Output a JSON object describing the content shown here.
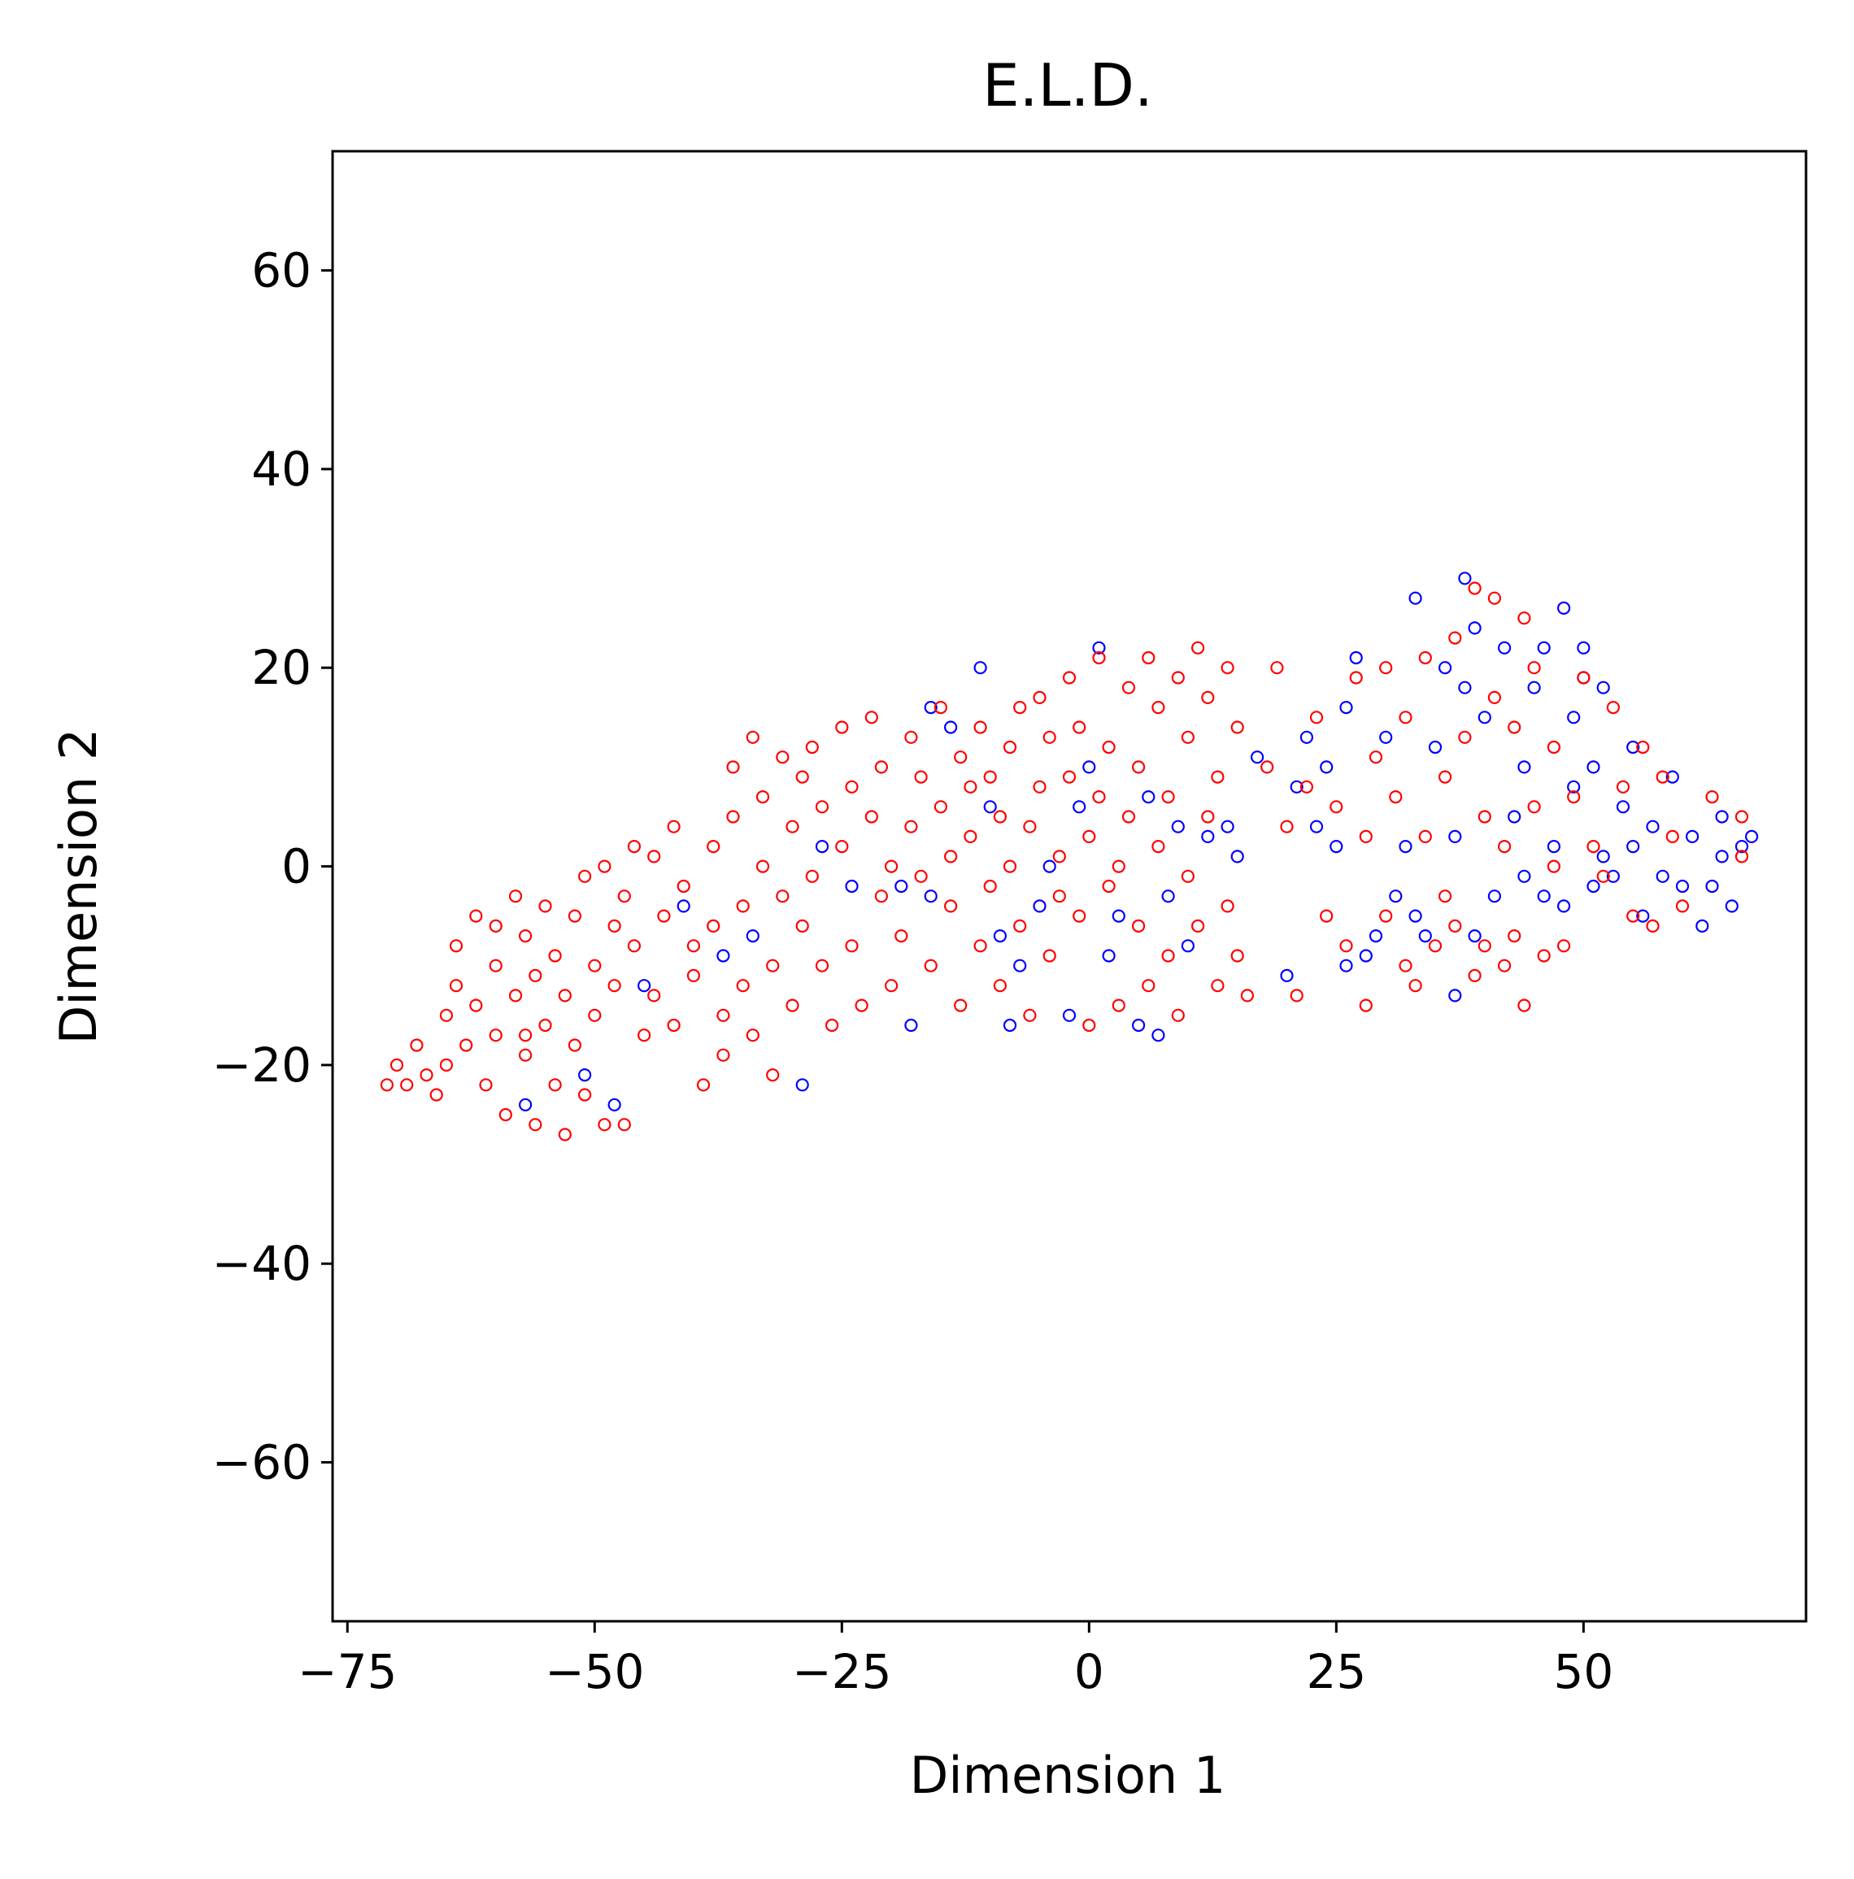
{
  "chart_data": {
    "type": "scatter",
    "title": "E.L.D.",
    "xlabel": "Dimension 1",
    "ylabel": "Dimension 2",
    "xlim": [
      -76.5,
      72.5
    ],
    "ylim": [
      -76,
      72
    ],
    "xticks": [
      -75,
      -50,
      -25,
      0,
      25,
      50
    ],
    "xtick_labels": [
      "−75",
      "−50",
      "−25",
      "0",
      "25",
      "50"
    ],
    "yticks": [
      -60,
      -40,
      -20,
      0,
      20,
      40,
      60
    ],
    "ytick_labels": [
      "−60",
      "−40",
      "−20",
      "0",
      "20",
      "40",
      "60"
    ],
    "grid": false,
    "legend": "none",
    "marker": "hollow-circle",
    "series": [
      {
        "color": "#0000ff",
        "points": [
          [
            -57,
            -24
          ],
          [
            -51,
            -21
          ],
          [
            -48,
            -24
          ],
          [
            -45,
            -12
          ],
          [
            -41,
            -4
          ],
          [
            -37,
            -9
          ],
          [
            -34,
            -7
          ],
          [
            -29,
            -22
          ],
          [
            -27,
            2
          ],
          [
            -24,
            -2
          ],
          [
            -19,
            -2
          ],
          [
            -18,
            -16
          ],
          [
            -16,
            -3
          ],
          [
            -16,
            16
          ],
          [
            -14,
            14
          ],
          [
            -11,
            20
          ],
          [
            -10,
            6
          ],
          [
            -9,
            -7
          ],
          [
            -8,
            -16
          ],
          [
            -7,
            -10
          ],
          [
            -5,
            -4
          ],
          [
            -4,
            0
          ],
          [
            -2,
            -15
          ],
          [
            -1,
            6
          ],
          [
            0,
            10
          ],
          [
            1,
            22
          ],
          [
            2,
            -9
          ],
          [
            3,
            -5
          ],
          [
            5,
            -16
          ],
          [
            6,
            7
          ],
          [
            7,
            -17
          ],
          [
            8,
            -3
          ],
          [
            9,
            4
          ],
          [
            10,
            -8
          ],
          [
            12,
            3
          ],
          [
            14,
            4
          ],
          [
            15,
            1
          ],
          [
            17,
            11
          ],
          [
            20,
            -11
          ],
          [
            21,
            8
          ],
          [
            22,
            13
          ],
          [
            23,
            4
          ],
          [
            24,
            10
          ],
          [
            25,
            2
          ],
          [
            26,
            -10
          ],
          [
            26,
            16
          ],
          [
            27,
            21
          ],
          [
            28,
            -9
          ],
          [
            29,
            -7
          ],
          [
            30,
            13
          ],
          [
            31,
            -3
          ],
          [
            32,
            2
          ],
          [
            33,
            -5
          ],
          [
            33,
            27
          ],
          [
            34,
            -7
          ],
          [
            35,
            12
          ],
          [
            36,
            20
          ],
          [
            37,
            3
          ],
          [
            37,
            -13
          ],
          [
            38,
            29
          ],
          [
            38,
            18
          ],
          [
            39,
            24
          ],
          [
            39,
            -7
          ],
          [
            40,
            15
          ],
          [
            41,
            -3
          ],
          [
            42,
            22
          ],
          [
            43,
            5
          ],
          [
            44,
            -1
          ],
          [
            44,
            10
          ],
          [
            45,
            18
          ],
          [
            46,
            -3
          ],
          [
            46,
            22
          ],
          [
            47,
            2
          ],
          [
            48,
            26
          ],
          [
            48,
            -4
          ],
          [
            49,
            15
          ],
          [
            49,
            8
          ],
          [
            50,
            19
          ],
          [
            50,
            22
          ],
          [
            51,
            -2
          ],
          [
            51,
            10
          ],
          [
            52,
            1
          ],
          [
            52,
            18
          ],
          [
            53,
            -1
          ],
          [
            54,
            6
          ],
          [
            55,
            2
          ],
          [
            55,
            12
          ],
          [
            56,
            -5
          ],
          [
            57,
            4
          ],
          [
            58,
            -1
          ],
          [
            59,
            9
          ],
          [
            60,
            -2
          ],
          [
            61,
            3
          ],
          [
            62,
            -6
          ],
          [
            63,
            -2
          ],
          [
            64,
            5
          ],
          [
            64,
            1
          ],
          [
            65,
            -4
          ],
          [
            66,
            2
          ],
          [
            67,
            3
          ]
        ]
      },
      {
        "color": "#ff0000",
        "points": [
          [
            -71,
            -22
          ],
          [
            -70,
            -20
          ],
          [
            -69,
            -22
          ],
          [
            -68,
            -18
          ],
          [
            -67,
            -21
          ],
          [
            -66,
            -23
          ],
          [
            -65,
            -15
          ],
          [
            -65,
            -20
          ],
          [
            -64,
            -12
          ],
          [
            -64,
            -8
          ],
          [
            -63,
            -18
          ],
          [
            -62,
            -5
          ],
          [
            -62,
            -14
          ],
          [
            -61,
            -22
          ],
          [
            -60,
            -10
          ],
          [
            -60,
            -17
          ],
          [
            -59,
            -25
          ],
          [
            -58,
            -3
          ],
          [
            -58,
            -13
          ],
          [
            -57,
            -19
          ],
          [
            -57,
            -7
          ],
          [
            -56,
            -26
          ],
          [
            -56,
            -11
          ],
          [
            -55,
            -16
          ],
          [
            -55,
            -4
          ],
          [
            -54,
            -22
          ],
          [
            -54,
            -9
          ],
          [
            -53,
            -13
          ],
          [
            -53,
            -27
          ],
          [
            -52,
            -18
          ],
          [
            -52,
            -5
          ],
          [
            -51,
            -23
          ],
          [
            -51,
            -1
          ],
          [
            -50,
            -10
          ],
          [
            -50,
            -15
          ],
          [
            -49,
            -26
          ],
          [
            -49,
            0
          ],
          [
            -48,
            -6
          ],
          [
            -48,
            -12
          ],
          [
            -47,
            -3
          ],
          [
            -46,
            2
          ],
          [
            -46,
            -8
          ],
          [
            -45,
            -17
          ],
          [
            -44,
            1
          ],
          [
            -44,
            -13
          ],
          [
            -43,
            -5
          ],
          [
            -42,
            4
          ],
          [
            -42,
            -16
          ],
          [
            -41,
            -2
          ],
          [
            -40,
            -8
          ],
          [
            -40,
            -11
          ],
          [
            -39,
            -22
          ],
          [
            -38,
            -6
          ],
          [
            -38,
            2
          ],
          [
            -37,
            -15
          ],
          [
            -37,
            -19
          ],
          [
            -36,
            5
          ],
          [
            -36,
            10
          ],
          [
            -35,
            -4
          ],
          [
            -35,
            -12
          ],
          [
            -34,
            13
          ],
          [
            -34,
            -17
          ],
          [
            -33,
            0
          ],
          [
            -33,
            7
          ],
          [
            -32,
            -10
          ],
          [
            -32,
            -21
          ],
          [
            -31,
            -3
          ],
          [
            -31,
            11
          ],
          [
            -30,
            4
          ],
          [
            -30,
            -14
          ],
          [
            -29,
            9
          ],
          [
            -29,
            -6
          ],
          [
            -28,
            -1
          ],
          [
            -28,
            12
          ],
          [
            -27,
            6
          ],
          [
            -27,
            -10
          ],
          [
            -26,
            -16
          ],
          [
            -25,
            14
          ],
          [
            -25,
            2
          ],
          [
            -24,
            8
          ],
          [
            -24,
            -8
          ],
          [
            -23,
            -14
          ],
          [
            -22,
            5
          ],
          [
            -22,
            15
          ],
          [
            -21,
            10
          ],
          [
            -21,
            -3
          ],
          [
            -20,
            0
          ],
          [
            -20,
            -12
          ],
          [
            -19,
            -7
          ],
          [
            -18,
            13
          ],
          [
            -18,
            4
          ],
          [
            -17,
            -1
          ],
          [
            -17,
            9
          ],
          [
            -16,
            -10
          ],
          [
            -15,
            6
          ],
          [
            -15,
            16
          ],
          [
            -14,
            -4
          ],
          [
            -14,
            1
          ],
          [
            -13,
            11
          ],
          [
            -13,
            -14
          ],
          [
            -12,
            3
          ],
          [
            -12,
            8
          ],
          [
            -11,
            -8
          ],
          [
            -11,
            14
          ],
          [
            -10,
            -2
          ],
          [
            -10,
            9
          ],
          [
            -9,
            5
          ],
          [
            -9,
            -12
          ],
          [
            -8,
            12
          ],
          [
            -8,
            0
          ],
          [
            -7,
            -6
          ],
          [
            -7,
            16
          ],
          [
            -6,
            4
          ],
          [
            -6,
            -15
          ],
          [
            -5,
            8
          ],
          [
            -5,
            17
          ],
          [
            -4,
            -9
          ],
          [
            -4,
            13
          ],
          [
            -3,
            1
          ],
          [
            -3,
            -3
          ],
          [
            -2,
            19
          ],
          [
            -2,
            9
          ],
          [
            -1,
            -5
          ],
          [
            -1,
            14
          ],
          [
            0,
            3
          ],
          [
            0,
            -16
          ],
          [
            1,
            7
          ],
          [
            1,
            21
          ],
          [
            2,
            -2
          ],
          [
            2,
            12
          ],
          [
            3,
            0
          ],
          [
            3,
            -14
          ],
          [
            4,
            18
          ],
          [
            4,
            5
          ],
          [
            5,
            -6
          ],
          [
            5,
            10
          ],
          [
            6,
            21
          ],
          [
            6,
            -12
          ],
          [
            7,
            2
          ],
          [
            7,
            16
          ],
          [
            8,
            -9
          ],
          [
            8,
            7
          ],
          [
            9,
            19
          ],
          [
            9,
            -15
          ],
          [
            10,
            -1
          ],
          [
            10,
            13
          ],
          [
            11,
            22
          ],
          [
            11,
            -6
          ],
          [
            12,
            5
          ],
          [
            12,
            17
          ],
          [
            13,
            -12
          ],
          [
            13,
            9
          ],
          [
            14,
            -4
          ],
          [
            14,
            20
          ],
          [
            15,
            -9
          ],
          [
            15,
            14
          ],
          [
            16,
            -13
          ],
          [
            18,
            10
          ],
          [
            19,
            20
          ],
          [
            20,
            4
          ],
          [
            21,
            -13
          ],
          [
            22,
            8
          ],
          [
            23,
            15
          ],
          [
            24,
            -5
          ],
          [
            25,
            6
          ],
          [
            26,
            -8
          ],
          [
            27,
            19
          ],
          [
            28,
            3
          ],
          [
            28,
            -14
          ],
          [
            29,
            11
          ],
          [
            30,
            20
          ],
          [
            30,
            -5
          ],
          [
            31,
            7
          ],
          [
            32,
            -10
          ],
          [
            32,
            15
          ],
          [
            33,
            -12
          ],
          [
            34,
            3
          ],
          [
            34,
            21
          ],
          [
            35,
            -8
          ],
          [
            36,
            9
          ],
          [
            36,
            -3
          ],
          [
            37,
            -6
          ],
          [
            37,
            23
          ],
          [
            38,
            13
          ],
          [
            39,
            -11
          ],
          [
            39,
            28
          ],
          [
            40,
            5
          ],
          [
            40,
            -8
          ],
          [
            41,
            17
          ],
          [
            41,
            27
          ],
          [
            42,
            -10
          ],
          [
            42,
            2
          ],
          [
            43,
            14
          ],
          [
            43,
            -7
          ],
          [
            44,
            25
          ],
          [
            44,
            -14
          ],
          [
            45,
            6
          ],
          [
            45,
            20
          ],
          [
            46,
            -9
          ],
          [
            47,
            12
          ],
          [
            47,
            0
          ],
          [
            48,
            -8
          ],
          [
            49,
            7
          ],
          [
            50,
            19
          ],
          [
            51,
            2
          ],
          [
            52,
            -1
          ],
          [
            53,
            16
          ],
          [
            54,
            8
          ],
          [
            55,
            -5
          ],
          [
            56,
            12
          ],
          [
            57,
            -6
          ],
          [
            58,
            9
          ],
          [
            59,
            3
          ],
          [
            60,
            -4
          ],
          [
            63,
            7
          ],
          [
            66,
            1
          ],
          [
            66,
            5
          ],
          [
            -60,
            -6
          ],
          [
            -57,
            -17
          ],
          [
            -47,
            -26
          ]
        ]
      }
    ]
  }
}
